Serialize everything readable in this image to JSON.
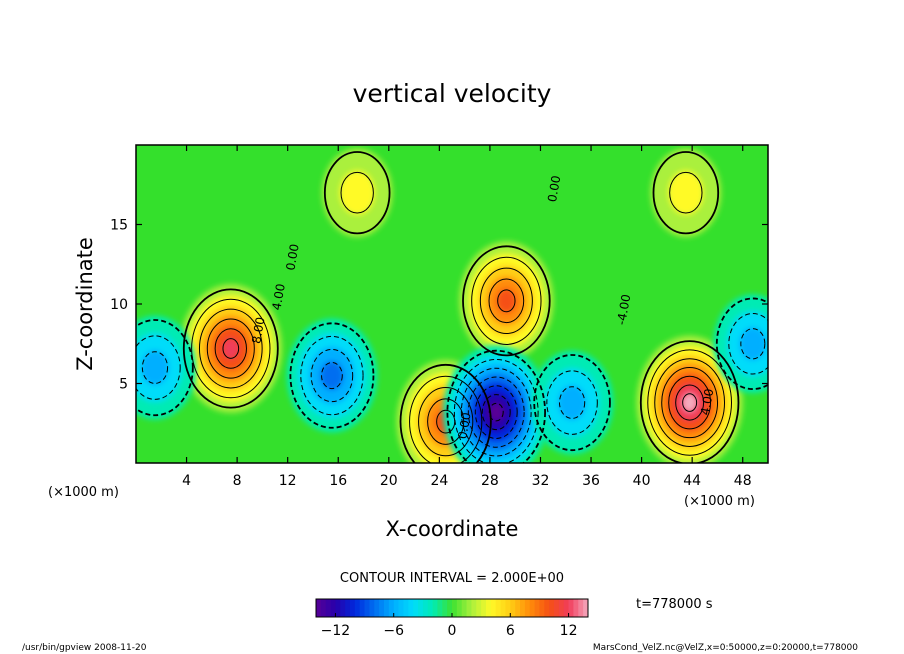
{
  "chart_data": {
    "type": "heatmap",
    "title": "vertical velocity",
    "xlabel": "X-coordinate",
    "ylabel": "Z-coordinate",
    "x_unit_left": "(×1000 m)",
    "x_unit_right": "(×1000 m)",
    "xlim": [
      0,
      50
    ],
    "ylim": [
      0,
      20
    ],
    "x_ticks": [
      "4",
      "8",
      "12",
      "16",
      "20",
      "24",
      "28",
      "32",
      "36",
      "40",
      "44",
      "48"
    ],
    "x_tick_values": [
      4,
      8,
      12,
      16,
      20,
      24,
      28,
      32,
      36,
      40,
      44,
      48
    ],
    "y_ticks": [
      "5",
      "10",
      "15"
    ],
    "y_tick_values": [
      5,
      10,
      15
    ],
    "contour_interval_text": "CONTOUR INTERVAL = 2.000E+00",
    "time_text": "t=778000 s",
    "colorbar": {
      "range": [
        -14,
        14
      ],
      "ticks": [
        "−12",
        "−6",
        "0",
        "6",
        "12"
      ],
      "tick_values": [
        -12,
        -6,
        0,
        6,
        12
      ]
    },
    "contour_labels": [
      {
        "text": "8.00",
        "x": 10,
        "z": 8.3
      },
      {
        "text": "4.00",
        "x": 11.6,
        "z": 10.4
      },
      {
        "text": "0.00",
        "x": 12.7,
        "z": 12.9
      },
      {
        "text": "0.00",
        "x": 33.4,
        "z": 17.2
      },
      {
        "text": "-4.00",
        "x": 38.9,
        "z": 9.6
      },
      {
        "text": "4.00",
        "x": 45.5,
        "z": 3.8
      },
      {
        "text": "0.00",
        "x": 26.3,
        "z": 2.3
      }
    ],
    "features": [
      {
        "name": "updraft",
        "x": 7.5,
        "z": 7.2,
        "peak": 11
      },
      {
        "name": "updraft",
        "x": 24.5,
        "z": 2.6,
        "peak": 10
      },
      {
        "name": "updraft",
        "x": 29.3,
        "z": 10.2,
        "peak": 9
      },
      {
        "name": "updraft",
        "x": 43.8,
        "z": 3.8,
        "peak": 13
      },
      {
        "name": "downdraft",
        "x": 28.5,
        "z": 3.2,
        "peak": -14
      },
      {
        "name": "downdraft",
        "x": 15.5,
        "z": 5.5,
        "peak": -8
      },
      {
        "name": "downdraft",
        "x": 34.5,
        "z": 3.8,
        "peak": -6
      },
      {
        "name": "downdraft",
        "x": 1.5,
        "z": 6,
        "peak": -6
      },
      {
        "name": "downdraft",
        "x": 48.8,
        "z": 7.5,
        "peak": -5
      },
      {
        "name": "updraft",
        "x": 17.5,
        "z": 17,
        "peak": 3
      },
      {
        "name": "updraft",
        "x": 43.5,
        "z": 17,
        "peak": 3
      }
    ]
  },
  "footer": {
    "left": "/usr/bin/gpview  2008-11-20",
    "right": "MarsCond_VelZ.nc@VelZ,x=0:50000,z=0:20000,t=778000"
  },
  "colors": {
    "background_field": "#34e02c",
    "max": "#f4a6b8",
    "min": "#5a0099"
  }
}
